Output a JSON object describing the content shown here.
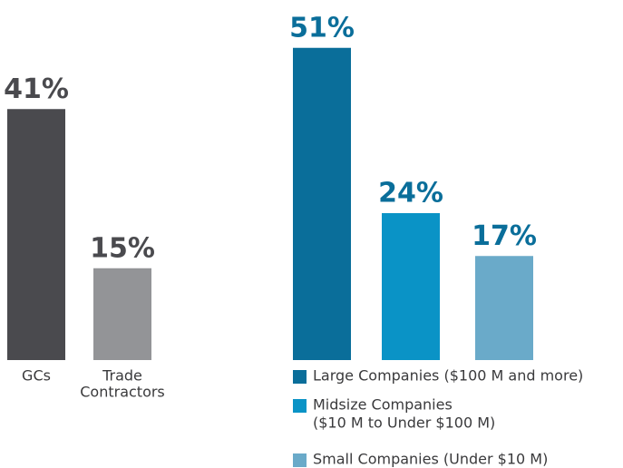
{
  "chart_data": [
    {
      "type": "bar",
      "categories": [
        [
          "GCs"
        ],
        [
          "Trade",
          "Contractors"
        ]
      ],
      "values": [
        41,
        15
      ],
      "value_labels": [
        "41%",
        "15%"
      ],
      "colors": [
        "#4a4a4e",
        "#939497"
      ],
      "label_color": "#4a4a4e",
      "legend": false
    },
    {
      "type": "bar",
      "categories": [
        [
          "Large Companies ($100 M and more)"
        ],
        [
          "Midsize Companies",
          "($10 M to Under $100 M)"
        ],
        [
          "Small Companies (Under $10 M)"
        ]
      ],
      "values": [
        51,
        24,
        17
      ],
      "value_labels": [
        "51%",
        "24%",
        "17%"
      ],
      "colors": [
        "#0a6e9a",
        "#0a93c6",
        "#6aaac9"
      ],
      "label_color": "#0a6e9a",
      "legend": true
    }
  ]
}
